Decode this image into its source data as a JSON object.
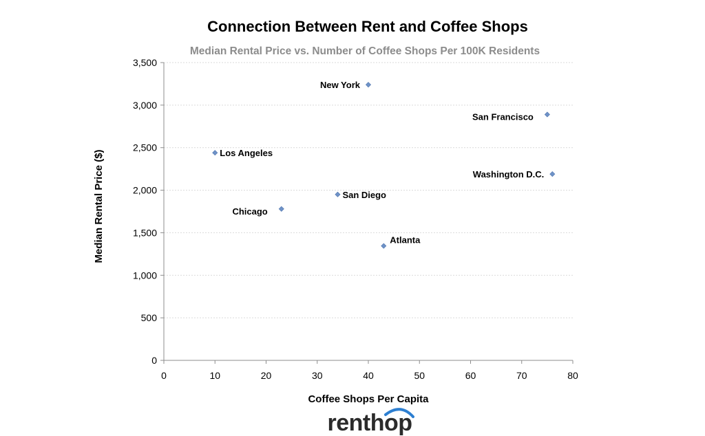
{
  "chart_data": {
    "type": "scatter",
    "title": "Connection Between Rent and Coffee Shops",
    "subtitle": "Median Rental Price vs. Number of Coffee Shops Per 100K Residents",
    "xlabel": "Coffee Shops Per Capita",
    "ylabel": "Median Rental Price ($)",
    "xlim": [
      0,
      80
    ],
    "ylim": [
      0,
      3500
    ],
    "x_ticks": [
      0,
      10,
      20,
      30,
      40,
      50,
      60,
      70,
      80
    ],
    "y_ticks": [
      0,
      500,
      1000,
      1500,
      2000,
      2500,
      3000,
      3500
    ],
    "y_tick_labels": [
      "0",
      "500",
      "1,000",
      "1,500",
      "2,000",
      "2,500",
      "3,000",
      "3,500"
    ],
    "grid": true,
    "marker_color": "#6f93c8",
    "points": [
      {
        "label": "New York",
        "x": 40,
        "y": 3240,
        "label_side": "left"
      },
      {
        "label": "San Francisco",
        "x": 75,
        "y": 2890,
        "label_side": "left-below"
      },
      {
        "label": "Los Angeles",
        "x": 10,
        "y": 2440,
        "label_side": "right"
      },
      {
        "label": "Washington D.C.",
        "x": 76,
        "y": 2190,
        "label_side": "left"
      },
      {
        "label": "San Diego",
        "x": 34,
        "y": 1950,
        "label_side": "right"
      },
      {
        "label": "Chicago",
        "x": 23,
        "y": 1780,
        "label_side": "left-below"
      },
      {
        "label": "Atlanta",
        "x": 43,
        "y": 1345,
        "label_side": "right-above"
      }
    ]
  },
  "logo": {
    "text": "renthop",
    "arc_color": "#2d7fd1"
  }
}
